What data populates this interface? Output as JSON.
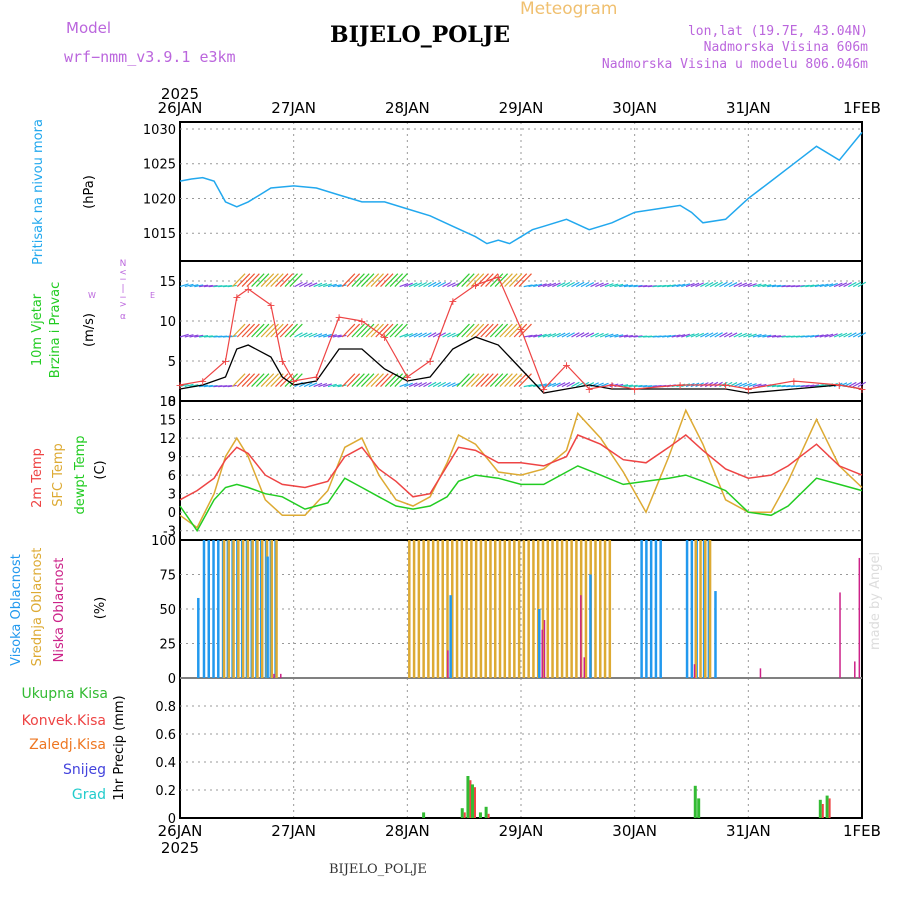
{
  "header": {
    "model_label": "Model",
    "model_name": "wrf−nmm_v3.9.1  e3km",
    "title": "BIJELO_POLJE",
    "meteogram": "Meteogram",
    "lonlat": "lon,lat (19.7E, 43.04N)",
    "elevation": "Nadmorska Visina 606m",
    "model_elevation": "Nadmorska Visina u modelu 806.046m",
    "footer": "BIJELO_POLJE",
    "credit": "made by Angel"
  },
  "colors": {
    "pressure": "#22a8ee",
    "wind_green": "#22cc22",
    "temp": "#ee4444",
    "sfc": "#ddaa33",
    "dewpt": "#22cc22",
    "cloud_high": "#2299ee",
    "cloud_mid": "#ddaa33",
    "cloud_low": "#cc2288",
    "precip_total": "#33bb33",
    "precip_conv": "#ee4444",
    "precip_frozen": "#ee7722",
    "snow": "#4444dd",
    "hail": "#22cccc",
    "header_purple": "#bb66dd",
    "meteogram": "#f0c070"
  },
  "chart_data": [
    {
      "type": "line",
      "name": "pressure",
      "ylabels": [
        "Pritisak na nivou mora",
        "(hPa)"
      ],
      "x_dates": [
        "26JAN",
        "27JAN",
        "28JAN",
        "29JAN",
        "30JAN",
        "31JAN",
        "1FEB"
      ],
      "year": "2025",
      "ylim": [
        1011,
        1031
      ],
      "yticks": [
        1015,
        1020,
        1025,
        1030
      ],
      "x_days": [
        0,
        0.1,
        0.2,
        0.3,
        0.4,
        0.5,
        0.6,
        0.7,
        0.8,
        1.0,
        1.2,
        1.4,
        1.6,
        1.8,
        2.0,
        2.2,
        2.4,
        2.6,
        2.7,
        2.8,
        2.9,
        3.0,
        3.1,
        3.2,
        3.4,
        3.6,
        3.8,
        4.0,
        4.2,
        4.4,
        4.5,
        4.6,
        4.8,
        5.0,
        5.2,
        5.4,
        5.6,
        5.8,
        6.0
      ],
      "values": [
        1022.5,
        1022.8,
        1023.0,
        1022.5,
        1019.5,
        1018.8,
        1019.5,
        1020.5,
        1021.5,
        1021.8,
        1021.5,
        1020.5,
        1019.5,
        1019.5,
        1018.5,
        1017.5,
        1016.0,
        1014.5,
        1013.5,
        1014.0,
        1013.5,
        1014.5,
        1015.5,
        1016.0,
        1017.0,
        1015.5,
        1016.5,
        1018.0,
        1018.5,
        1019.0,
        1018.0,
        1016.5,
        1017.0,
        1020.0,
        1022.5,
        1025.0,
        1027.5,
        1025.5,
        1029.5
      ]
    },
    {
      "type": "line",
      "name": "wind",
      "ylabels": [
        "10m Vjetar",
        "Brzina i Pravac",
        "(m/s)"
      ],
      "compass": [
        "N",
        "<",
        "−",
        "|",
        "−",
        ">",
        "α",
        "W",
        "E"
      ],
      "ylim": [
        0,
        17.5
      ],
      "yticks": [
        0,
        5,
        10,
        15
      ],
      "x_days": [
        0,
        0.2,
        0.4,
        0.5,
        0.6,
        0.8,
        0.9,
        1.0,
        1.2,
        1.4,
        1.6,
        1.8,
        2.0,
        2.2,
        2.4,
        2.6,
        2.8,
        3.0,
        3.2,
        3.4,
        3.6,
        3.8,
        4.0,
        4.4,
        4.8,
        5.0,
        5.4,
        5.8,
        6.0
      ],
      "speed": [
        1.5,
        2.0,
        3.0,
        6.5,
        7.0,
        5.5,
        3.0,
        2.0,
        2.5,
        6.5,
        6.5,
        4.0,
        2.5,
        3.0,
        6.5,
        8.0,
        7.0,
        4.0,
        1.0,
        1.5,
        2.0,
        1.5,
        1.5,
        1.5,
        1.5,
        1.0,
        1.5,
        2.0,
        1.5
      ],
      "gusts": [
        2.0,
        2.5,
        5.0,
        13.0,
        14.0,
        12.0,
        5.0,
        2.5,
        3.0,
        10.5,
        10.0,
        8.0,
        3.0,
        5.0,
        12.5,
        14.5,
        15.5,
        9.0,
        1.5,
        4.5,
        1.5,
        2.0,
        1.5,
        2.0,
        2.0,
        1.5,
        2.5,
        2.0,
        1.5
      ]
    },
    {
      "type": "line",
      "name": "temperature",
      "ylabels": [
        "2m Temp",
        "SFC Temp",
        "dewpt Temp",
        "(C)"
      ],
      "ylim": [
        -4.5,
        18
      ],
      "yticks": [
        -3,
        0,
        3,
        6,
        9,
        12,
        15,
        18
      ],
      "x_days": [
        0,
        0.15,
        0.3,
        0.4,
        0.5,
        0.6,
        0.75,
        0.9,
        1.1,
        1.3,
        1.45,
        1.6,
        1.75,
        1.9,
        2.05,
        2.2,
        2.35,
        2.45,
        2.6,
        2.8,
        3.0,
        3.2,
        3.4,
        3.5,
        3.7,
        3.9,
        4.1,
        4.3,
        4.45,
        4.6,
        4.8,
        5.0,
        5.2,
        5.35,
        5.6,
        5.8,
        6.0
      ],
      "temp_2m": [
        2.0,
        3.5,
        5.5,
        8.5,
        10.5,
        9.5,
        6.0,
        4.5,
        4.0,
        5.0,
        9.0,
        10.5,
        7.0,
        5.0,
        2.5,
        3.0,
        7.5,
        10.5,
        10.0,
        8.0,
        8.0,
        7.5,
        9.0,
        12.5,
        11.0,
        8.5,
        8.0,
        10.5,
        12.5,
        10.0,
        7.0,
        5.5,
        6.0,
        7.5,
        11.0,
        7.5,
        6.0
      ],
      "temp_sfc": [
        -0.5,
        -2.5,
        3.0,
        9.0,
        12.0,
        9.0,
        2.0,
        -0.5,
        -0.5,
        3.5,
        10.5,
        12.0,
        6.0,
        2.0,
        1.0,
        2.5,
        8.0,
        12.5,
        11.0,
        6.5,
        6.0,
        7.0,
        10.0,
        16.0,
        12.0,
        6.5,
        0.0,
        9.0,
        16.5,
        11.0,
        2.0,
        0.0,
        0.0,
        5.0,
        15.0,
        7.5,
        4.0
      ],
      "dewpoint": [
        1.0,
        -3.0,
        2.0,
        4.0,
        4.5,
        4.0,
        3.0,
        2.5,
        0.5,
        1.5,
        5.5,
        4.0,
        2.5,
        1.0,
        0.5,
        1.0,
        2.5,
        5.0,
        6.0,
        5.5,
        4.5,
        4.5,
        6.5,
        7.5,
        6.0,
        4.5,
        5.0,
        5.5,
        6.0,
        5.0,
        3.5,
        0.0,
        -0.5,
        1.0,
        5.5,
        4.5,
        3.5
      ]
    },
    {
      "type": "bar",
      "name": "cloud",
      "ylabels": [
        "Visoka Oblacnost",
        "Srednja Oblacnost",
        "Niska Oblacnost",
        "(%)"
      ],
      "ylim": [
        0,
        100
      ],
      "yticks": [
        0,
        25,
        50,
        75,
        100
      ],
      "high_periods": [
        [
          0.2,
          0.85
        ],
        [
          4.05,
          4.25
        ],
        [
          4.45,
          4.55
        ],
        [
          4.6,
          4.65
        ]
      ],
      "mid_periods": [
        [
          0.35,
          0.85
        ],
        [
          1.98,
          3.75
        ],
        [
          4.5,
          4.65
        ]
      ],
      "high_singles": [
        [
          0.15,
          58
        ],
        [
          0.76,
          88
        ],
        [
          2.37,
          60
        ],
        [
          3.15,
          50
        ],
        [
          3.6,
          75
        ],
        [
          4.7,
          63
        ]
      ],
      "low_singles": [
        [
          0.82,
          3
        ],
        [
          0.88,
          3
        ],
        [
          2.35,
          20
        ],
        [
          3.18,
          35
        ],
        [
          3.2,
          42
        ],
        [
          3.52,
          60
        ],
        [
          3.55,
          15
        ],
        [
          4.52,
          10
        ],
        [
          5.1,
          7
        ],
        [
          5.8,
          62
        ],
        [
          5.93,
          12
        ],
        [
          5.97,
          87
        ]
      ]
    },
    {
      "type": "bar",
      "name": "precipitation",
      "ylabels": [
        "Ukupna Kisa",
        "Konvek.Kisa",
        "Zaledj.Kisa",
        "Snijeg",
        "Grad",
        "1hr Precip (mm)"
      ],
      "ylim": [
        0,
        1.0
      ],
      "yticks": [
        0,
        0.2,
        0.4,
        0.6,
        0.8
      ],
      "ytick_labels": [
        "0",
        "0.2",
        "0.4",
        "0.6",
        "0.8"
      ],
      "x_days": [
        2.13,
        2.47,
        2.52,
        2.56,
        2.63,
        2.68,
        4.52,
        4.55,
        5.62,
        5.68
      ],
      "total": [
        0.04,
        0.07,
        0.3,
        0.24,
        0.04,
        0.08,
        0.23,
        0.14,
        0.13,
        0.16
      ],
      "convective": [
        0.02,
        0.04,
        0.27,
        0.22,
        0.02,
        0.03,
        0.02,
        0.02,
        0.1,
        0.14
      ]
    }
  ]
}
